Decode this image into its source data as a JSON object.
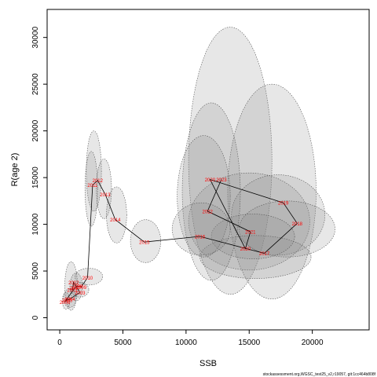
{
  "chart_data": {
    "type": "scatter",
    "xlabel": "SSB",
    "ylabel": "R(age 2)",
    "xlim": [
      -1000,
      24500
    ],
    "ylim": [
      -1300,
      33000
    ],
    "x_ticks": [
      0,
      5000,
      10000,
      15000,
      20000
    ],
    "y_ticks": [
      0,
      5000,
      10000,
      15000,
      20000,
      25000,
      30000
    ],
    "grid": false,
    "point_color": "#ff0000",
    "path_color": "#000000",
    "ellipse_fill": "#888888",
    "series": [
      {
        "points": [
          {
            "year": "2006",
            "x": 400,
            "y": 1700
          },
          {
            "year": "2005",
            "x": 600,
            "y": 1900
          },
          {
            "year": "2004",
            "x": 800,
            "y": 2000
          },
          {
            "year": "2001",
            "x": 1000,
            "y": 3000
          },
          {
            "year": "2002",
            "x": 1100,
            "y": 3800
          },
          {
            "year": "2007",
            "x": 1200,
            "y": 3200
          },
          {
            "year": "2008",
            "x": 1400,
            "y": 3400
          },
          {
            "year": "2009",
            "x": 1700,
            "y": 3300
          },
          {
            "year": "2003",
            "x": 1600,
            "y": 2700
          },
          {
            "year": "2010",
            "x": 2200,
            "y": 4300
          },
          {
            "year": "2011",
            "x": 2600,
            "y": 14200
          },
          {
            "year": "2012",
            "x": 3000,
            "y": 14700
          },
          {
            "year": "2013",
            "x": 3600,
            "y": 13200
          },
          {
            "year": "2014",
            "x": 4400,
            "y": 10500
          },
          {
            "year": "2015",
            "x": 6700,
            "y": 8100
          },
          {
            "year": "2016",
            "x": 11100,
            "y": 8700
          },
          {
            "year": "2020",
            "x": 14700,
            "y": 7400
          },
          {
            "year": "2017",
            "x": 16200,
            "y": 6900
          },
          {
            "year": "2021",
            "x": 15100,
            "y": 9200
          },
          {
            "year": "2018",
            "x": 18800,
            "y": 10100
          },
          {
            "year": "2019",
            "x": 17700,
            "y": 12300
          },
          {
            "year": "2022",
            "x": 11700,
            "y": 11400
          },
          {
            "year": "2020b",
            "label": "2020",
            "x": 11900,
            "y": 14800
          },
          {
            "year": "2023",
            "x": 12800,
            "y": 14800
          }
        ]
      }
    ],
    "path_order": [
      "2001",
      "2002",
      "2003",
      "2004",
      "2005",
      "2006",
      "2007",
      "2008",
      "2009",
      "2010",
      "2011",
      "2012",
      "2013",
      "2014",
      "2015",
      "2016",
      "2017",
      "2018",
      "2019",
      "2020",
      "2021",
      "2022",
      "2023"
    ],
    "ellipses": [
      {
        "cx": 13500,
        "cy": 16800,
        "rx": 3300,
        "ry": 14300,
        "rot": 0
      },
      {
        "cx": 16800,
        "cy": 13500,
        "rx": 3500,
        "ry": 11500,
        "rot": 0
      },
      {
        "cx": 15000,
        "cy": 10300,
        "rx": 4800,
        "ry": 5200,
        "rot": 0
      },
      {
        "cx": 17300,
        "cy": 11000,
        "rx": 3700,
        "ry": 4300,
        "rot": 0
      },
      {
        "cx": 18000,
        "cy": 9500,
        "rx": 3800,
        "ry": 3000,
        "rot": 0
      },
      {
        "cx": 15500,
        "cy": 6500,
        "rx": 4400,
        "ry": 2300,
        "rot": 0
      },
      {
        "cx": 15300,
        "cy": 8700,
        "rx": 3300,
        "ry": 2400,
        "rot": 0
      },
      {
        "cx": 12000,
        "cy": 13500,
        "rx": 2300,
        "ry": 9500,
        "rot": 0
      },
      {
        "cx": 11400,
        "cy": 13000,
        "rx": 2100,
        "ry": 6500,
        "rot": 0
      },
      {
        "cx": 11200,
        "cy": 9500,
        "rx": 2300,
        "ry": 2800,
        "rot": 0
      },
      {
        "cx": 2700,
        "cy": 15700,
        "rx": 600,
        "ry": 4300,
        "rot": 0
      },
      {
        "cx": 3500,
        "cy": 13800,
        "rx": 600,
        "ry": 3200,
        "rot": 0
      },
      {
        "cx": 4500,
        "cy": 11000,
        "rx": 800,
        "ry": 3000,
        "rot": 0
      },
      {
        "cx": 2500,
        "cy": 13800,
        "rx": 500,
        "ry": 4000,
        "rot": 0
      },
      {
        "cx": 6800,
        "cy": 8200,
        "rx": 1200,
        "ry": 2300,
        "rot": 0
      },
      {
        "cx": 2300,
        "cy": 4400,
        "rx": 1100,
        "ry": 900,
        "rot": 0
      },
      {
        "cx": 900,
        "cy": 3400,
        "rx": 500,
        "ry": 2600,
        "rot": 0
      },
      {
        "cx": 1300,
        "cy": 3300,
        "rx": 500,
        "ry": 1500,
        "rot": 0
      },
      {
        "cx": 1600,
        "cy": 3000,
        "rx": 700,
        "ry": 800,
        "rot": 0
      },
      {
        "cx": 800,
        "cy": 2100,
        "rx": 500,
        "ry": 1000,
        "rot": 0
      },
      {
        "cx": 500,
        "cy": 1800,
        "rx": 300,
        "ry": 900,
        "rot": 0
      }
    ]
  },
  "footer": {
    "credit": "stockassessment.org,WGSC_test25_v2,r19057, git:1cc464b808f"
  }
}
